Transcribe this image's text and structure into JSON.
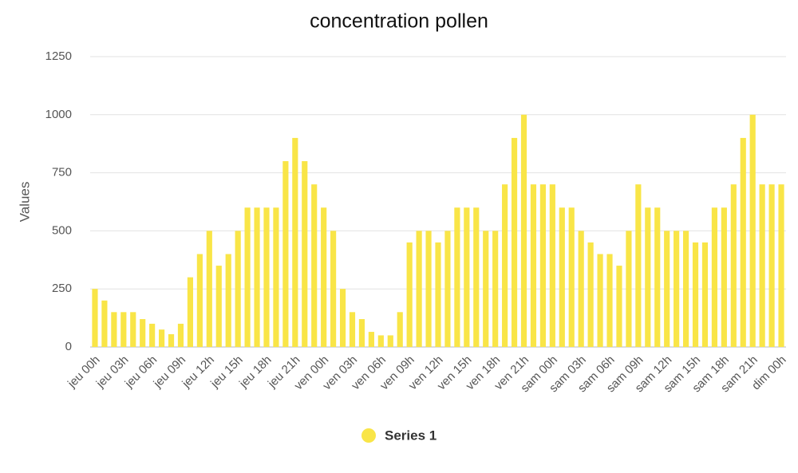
{
  "chart_data": {
    "type": "bar",
    "title": "concentration pollen",
    "y_label": "Values",
    "categories": [
      "jeu 00h",
      null,
      null,
      "jeu 03h",
      null,
      null,
      "jeu 06h",
      null,
      null,
      "jeu 09h",
      null,
      null,
      "jeu 12h",
      null,
      null,
      "jeu 15h",
      null,
      null,
      "jeu 18h",
      null,
      null,
      "jeu 21h",
      null,
      null,
      "ven 00h",
      null,
      null,
      "ven 03h",
      null,
      null,
      "ven 06h",
      null,
      null,
      "ven 09h",
      null,
      null,
      "ven 12h",
      null,
      null,
      "ven 15h",
      null,
      null,
      "ven 18h",
      null,
      null,
      "ven 21h",
      null,
      null,
      "sam 00h",
      null,
      null,
      "sam 03h",
      null,
      null,
      "sam 06h",
      null,
      null,
      "sam 09h",
      null,
      null,
      "sam 12h",
      null,
      null,
      "sam 15h",
      null,
      null,
      "sam 18h",
      null,
      null,
      "sam 21h",
      null,
      null,
      "dim 00h"
    ],
    "series": [
      {
        "name": "Series 1",
        "color": "#f9e547",
        "values": [
          250,
          200,
          150,
          150,
          150,
          120,
          100,
          75,
          55,
          100,
          300,
          400,
          500,
          350,
          400,
          500,
          600,
          600,
          600,
          600,
          800,
          900,
          800,
          700,
          600,
          500,
          250,
          150,
          120,
          65,
          50,
          50,
          150,
          450,
          500,
          500,
          450,
          500,
          600,
          600,
          600,
          500,
          500,
          700,
          900,
          1000,
          700,
          700,
          700,
          600,
          600,
          500,
          450,
          400,
          400,
          350,
          500,
          700,
          600,
          600,
          500,
          500,
          500,
          450,
          450,
          600,
          600,
          700,
          900,
          1000,
          700,
          700,
          700
        ]
      }
    ],
    "ylim": [
      0,
      1250
    ],
    "yticks": [
      0,
      250,
      500,
      750,
      1000,
      1250
    ],
    "grid": true,
    "legend": "bottom"
  }
}
